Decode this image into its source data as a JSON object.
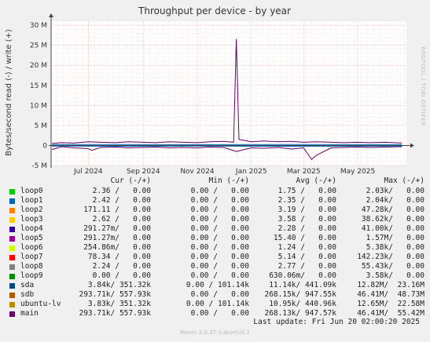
{
  "chart_data": {
    "type": "line",
    "title": "Throughput per device - by year",
    "ylabel": "Bytes/second read (-) / write (+)",
    "y_ticks": [
      {
        "v": 30000000,
        "label": "30 M"
      },
      {
        "v": 25000000,
        "label": "25 M"
      },
      {
        "v": 20000000,
        "label": "20 M"
      },
      {
        "v": 15000000,
        "label": "15 M"
      },
      {
        "v": 10000000,
        "label": "10 M"
      },
      {
        "v": 5000000,
        "label": "5 M"
      },
      {
        "v": 0,
        "label": "0"
      },
      {
        "v": -5000000,
        "label": "-5 M"
      }
    ],
    "ylim": [
      -5000000,
      31000000
    ],
    "xlim": [
      "2024-05-20",
      "2025-06-25"
    ],
    "x_ticks": [
      {
        "date": "2024-07-01",
        "label": "Jul 2024"
      },
      {
        "date": "2024-09-01",
        "label": "Sep 2024"
      },
      {
        "date": "2024-11-01",
        "label": "Nov 2024"
      },
      {
        "date": "2025-01-01",
        "label": "Jan 2025"
      },
      {
        "date": "2025-03-01",
        "label": "Mar 2025"
      },
      {
        "date": "2025-05-01",
        "label": "May 2025"
      }
    ],
    "grid": true,
    "series": [
      {
        "name": "main",
        "color": "#660066",
        "write": [
          [
            "2024-05-21",
            500000
          ],
          [
            "2024-06-01",
            700000
          ],
          [
            "2024-06-15",
            600000
          ],
          [
            "2024-07-01",
            900000
          ],
          [
            "2024-07-15",
            800000
          ],
          [
            "2024-08-01",
            700000
          ],
          [
            "2024-08-15",
            900000
          ],
          [
            "2024-09-01",
            800000
          ],
          [
            "2024-09-15",
            700000
          ],
          [
            "2024-10-01",
            900000
          ],
          [
            "2024-10-15",
            800000
          ],
          [
            "2024-11-01",
            700000
          ],
          [
            "2024-11-15",
            900000
          ],
          [
            "2024-12-01",
            1000000
          ],
          [
            "2024-12-12",
            800000
          ],
          [
            "2024-12-15",
            26500000
          ],
          [
            "2024-12-18",
            1500000
          ],
          [
            "2025-01-01",
            900000
          ],
          [
            "2025-01-15",
            1100000
          ],
          [
            "2025-02-01",
            900000
          ],
          [
            "2025-02-15",
            1000000
          ],
          [
            "2025-03-01",
            800000
          ],
          [
            "2025-03-15",
            900000
          ],
          [
            "2025-04-01",
            800000
          ],
          [
            "2025-04-15",
            700000
          ],
          [
            "2025-05-01",
            800000
          ],
          [
            "2025-05-15",
            700000
          ],
          [
            "2025-06-01",
            800000
          ],
          [
            "2025-06-20",
            600000
          ]
        ],
        "read": [
          [
            "2024-05-21",
            -1000000
          ],
          [
            "2024-06-01",
            -300000
          ],
          [
            "2024-06-15",
            -600000
          ],
          [
            "2024-07-01",
            -800000
          ],
          [
            "2024-07-05",
            -1200000
          ],
          [
            "2024-07-15",
            -500000
          ],
          [
            "2024-08-01",
            -400000
          ],
          [
            "2024-08-15",
            -600000
          ],
          [
            "2024-09-01",
            -500000
          ],
          [
            "2024-09-15",
            -400000
          ],
          [
            "2024-10-01",
            -600000
          ],
          [
            "2024-10-15",
            -500000
          ],
          [
            "2024-11-01",
            -600000
          ],
          [
            "2024-11-15",
            -400000
          ],
          [
            "2024-12-01",
            -500000
          ],
          [
            "2024-12-15",
            -1500000
          ],
          [
            "2025-01-01",
            -600000
          ],
          [
            "2025-01-15",
            -700000
          ],
          [
            "2025-02-01",
            -500000
          ],
          [
            "2025-02-15",
            -900000
          ],
          [
            "2025-03-01",
            -600000
          ],
          [
            "2025-03-10",
            -3500000
          ],
          [
            "2025-03-15",
            -2500000
          ],
          [
            "2025-04-01",
            -600000
          ],
          [
            "2025-04-15",
            -500000
          ],
          [
            "2025-05-01",
            -400000
          ],
          [
            "2025-05-15",
            -500000
          ],
          [
            "2025-06-01",
            -400000
          ],
          [
            "2025-06-20",
            -300000
          ]
        ]
      },
      {
        "name": "sda",
        "color": "#0066b3",
        "write": [
          [
            "2024-05-21",
            200000
          ],
          [
            "2024-08-01",
            250000
          ],
          [
            "2024-11-01",
            200000
          ],
          [
            "2025-02-01",
            250000
          ],
          [
            "2025-06-20",
            200000
          ]
        ],
        "read": [
          [
            "2024-05-21",
            -150000
          ],
          [
            "2024-08-01",
            -200000
          ],
          [
            "2024-11-01",
            -150000
          ],
          [
            "2025-02-01",
            -200000
          ],
          [
            "2025-06-20",
            -150000
          ]
        ]
      }
    ]
  },
  "watermark": "RRDTOOL / TOBI OETIKER",
  "legend": {
    "headers": {
      "cur": "Cur (-/+)",
      "min": "Min (-/+)",
      "avg": "Avg (-/+)",
      "max": "Max (-/+)"
    },
    "rows": [
      {
        "name": "loop0",
        "color": "#00cc00",
        "cur": "2.36 /   0.00",
        "min": "0.00 /   0.00",
        "avg": "1.75 /   0.00",
        "max": "2.03k/   0.00"
      },
      {
        "name": "loop1",
        "color": "#0066b3",
        "cur": "2.42 /   0.00",
        "min": "0.00 /   0.00",
        "avg": "2.35 /   0.00",
        "max": "2.04k/   0.00"
      },
      {
        "name": "loop2",
        "color": "#ff8000",
        "cur": "171.11 /   0.00",
        "min": "0.00 /   0.00",
        "avg": "3.19 /   0.00",
        "max": "47.28k/   0.00"
      },
      {
        "name": "loop3",
        "color": "#ffcc00",
        "cur": "2.62 /   0.00",
        "min": "0.00 /   0.00",
        "avg": "3.58 /   0.00",
        "max": "38.62k/   0.00"
      },
      {
        "name": "loop4",
        "color": "#330099",
        "cur": "291.27m/   0.00",
        "min": "0.00 /   0.00",
        "avg": "2.28 /   0.00",
        "max": "41.00k/   0.00"
      },
      {
        "name": "loop5",
        "color": "#990099",
        "cur": "291.27m/   0.00",
        "min": "0.00 /   0.00",
        "avg": "15.40 /   0.00",
        "max": "1.57M/   0.00"
      },
      {
        "name": "loop6",
        "color": "#ccff00",
        "cur": "254.86m/   0.00",
        "min": "0.00 /   0.00",
        "avg": "1.24 /   0.00",
        "max": "5.38k/   0.00"
      },
      {
        "name": "loop7",
        "color": "#ff0000",
        "cur": "78.34 /   0.00",
        "min": "0.00 /   0.00",
        "avg": "5.14 /   0.00",
        "max": "142.23k/   0.00"
      },
      {
        "name": "loop8",
        "color": "#808080",
        "cur": "2.24 /   0.00",
        "min": "0.00 /   0.00",
        "avg": "2.77 /   0.00",
        "max": "55.43k/   0.00"
      },
      {
        "name": "loop9",
        "color": "#008f00",
        "cur": "0.00 /   0.00",
        "min": "0.00 /   0.00",
        "avg": "630.06m/   0.00",
        "max": "3.58k/   0.00"
      },
      {
        "name": "sda",
        "color": "#00487d",
        "cur": "3.84k/ 351.32k",
        "min": "0.00 / 101.14k",
        "avg": "11.14k/ 441.09k",
        "max": "12.82M/  23.16M"
      },
      {
        "name": "sdb",
        "color": "#b35a00",
        "cur": "293.71k/ 557.93k",
        "min": "0.00 /   0.00",
        "avg": "268.15k/ 947.55k",
        "max": "46.41M/  48.73M"
      },
      {
        "name": "ubuntu-lv",
        "color": "#b38f00",
        "cur": "3.83k/ 351.32k",
        "min": "0.00 / 101.14k",
        "avg": "10.95k/ 440.96k",
        "max": "12.65M/  22.58M"
      },
      {
        "name": "main",
        "color": "#6b006b",
        "cur": "293.71k/ 557.93k",
        "min": "0.00 /   0.00",
        "avg": "268.13k/ 947.57k",
        "max": "46.41M/  55.42M"
      }
    ]
  },
  "last_update": "Last update: Fri Jun 20 02:00:20 2025",
  "footer": "Munin 2.0.37-1ubuntu0.1"
}
